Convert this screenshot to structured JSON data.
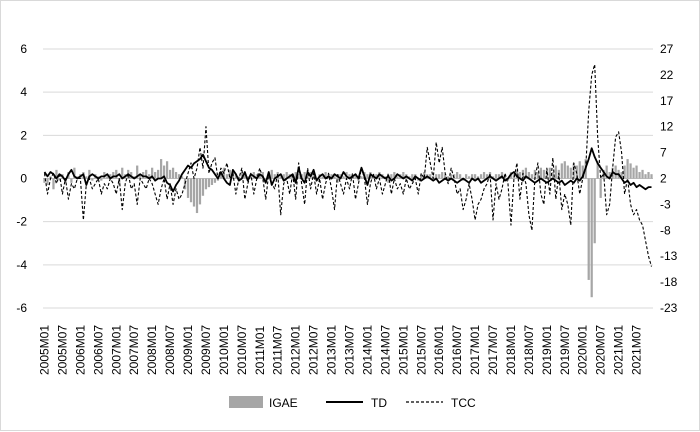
{
  "chart_data": {
    "type": "bar+line",
    "title": "",
    "xlabel": "",
    "ylabel_left": "",
    "ylabel_right": "",
    "left_axis": {
      "ylim": [
        -6,
        6
      ],
      "ticks": [
        "-6",
        "-4",
        "-2",
        "0",
        "2",
        "4",
        "6"
      ]
    },
    "right_axis": {
      "ylim": [
        -23,
        27
      ],
      "ticks": [
        "-23",
        "-18",
        "-13",
        "-8",
        "-3",
        "2",
        "7",
        "12",
        "17",
        "22",
        "27"
      ]
    },
    "x_tick_labels": [
      "2005M01",
      "2005M07",
      "2006M01",
      "2006M07",
      "2007M01",
      "2007M07",
      "2008M01",
      "2008M07",
      "2009M01",
      "2009M07",
      "2010M01",
      "2010M07",
      "2011M01",
      "2011M07",
      "2012M01",
      "2012M07",
      "2013M01",
      "2013M07",
      "2014M01",
      "2014M07",
      "2015M01",
      "2015M07",
      "2016M01",
      "2016M07",
      "2017M01",
      "2017M07",
      "2018M01",
      "2018M07",
      "2019M01",
      "2019M07",
      "2020M01",
      "2020M07",
      "2021M01",
      "2021M07"
    ],
    "grid": true,
    "legend_position": "bottom",
    "colors": {
      "IGAE": "#a6a6a6",
      "TD": "#000000",
      "TCC": "#000000",
      "grid": "#d9d9d9"
    },
    "series": [
      {
        "name": "IGAE",
        "type": "bar",
        "axis": "left",
        "x_start": "2005M01",
        "values": [
          -0.2,
          -0.3,
          0.1,
          -0.5,
          0.4,
          -0.1,
          0.2,
          -0.2,
          0.3,
          -0.2,
          0.5,
          0.1,
          0.2,
          0.3,
          0.1,
          0.4,
          -0.1,
          0.2,
          0.1,
          -0.1,
          0.3,
          0.1,
          0.2,
          0.3,
          0.4,
          -0.3,
          0.5,
          0.2,
          0.4,
          0.3,
          0.1,
          0.6,
          0.2,
          0.3,
          0.4,
          0.2,
          0.5,
          0.3,
          0.4,
          0.9,
          0.6,
          0.8,
          0.4,
          0.5,
          0.3,
          0.2,
          0.1,
          -0.5,
          -0.9,
          -1.1,
          -1.3,
          -1.6,
          -1.2,
          -0.8,
          -0.5,
          -0.4,
          -0.3,
          -0.2,
          -0.1,
          0.3,
          0.5,
          0.2,
          0.4,
          0.3,
          0.2,
          0.1,
          0.3,
          0.2,
          0.1,
          0.2,
          0.3,
          0.2,
          0.2,
          0.3,
          -0.1,
          0.2,
          0.4,
          0.2,
          0.3,
          0.1,
          0.2,
          0.3,
          0.2,
          0.2,
          0.3,
          0.2,
          0.2,
          0.3,
          0.1,
          0.3,
          0.2,
          -0.1,
          0.2,
          0.1,
          0.3,
          0.2,
          0.2,
          0.1,
          -0.2,
          0.2,
          0.1,
          0.3,
          0.2,
          0.1,
          0.2,
          -0.1,
          0.1,
          0.3,
          0.2,
          0.3,
          0.1,
          0.2,
          0.3,
          0.2,
          0.1,
          -0.2,
          0.2,
          0.3,
          0.1,
          0.2,
          0.3,
          0.2,
          0.1,
          0.2,
          0.2,
          -0.1,
          0.2,
          0.3,
          0.2,
          0.2,
          0.1,
          0.2,
          0.2,
          0.3,
          0.2,
          0.1,
          0.2,
          0.2,
          0.3,
          0.2,
          -0.1,
          0.2,
          0.1,
          0.2,
          0.2,
          0.1,
          0.2,
          0.3,
          0.2,
          0.3,
          0.1,
          0.2,
          0.2,
          0.3,
          0.2,
          -0.1,
          0.3,
          0.2,
          0.4,
          0.3,
          0.4,
          0.5,
          0.3,
          0.2,
          0.4,
          0.3,
          0.5,
          0.4,
          0.4,
          0.5,
          0.3,
          0.6,
          0.4,
          0.7,
          0.8,
          0.6,
          0.5,
          0.7,
          0.6,
          0.8,
          0.6,
          0.9,
          -4.7,
          -5.5,
          -3.0,
          0.8,
          -0.9,
          0.4,
          0.6,
          0.3,
          0.5,
          0.6,
          0.4,
          0.3,
          0.6,
          0.9,
          0.7,
          0.5,
          0.6,
          0.3,
          0.4,
          0.2,
          0.3,
          0.2
        ]
      },
      {
        "name": "TD",
        "type": "line",
        "axis": "left",
        "dash": "solid",
        "x_start": "2005M01",
        "values": [
          0.3,
          0.1,
          0.3,
          0.2,
          0.0,
          0.2,
          0.1,
          -0.1,
          0.2,
          0.4,
          0.1,
          0.0,
          0.1,
          0.2,
          -0.3,
          0.1,
          0.2,
          0.1,
          0.0,
          0.1,
          0.1,
          0.2,
          0.0,
          0.1,
          0.1,
          0.2,
          0.0,
          0.1,
          0.2,
          0.1,
          0.0,
          0.1,
          0.2,
          0.1,
          0.1,
          0.0,
          0.1,
          -0.1,
          0.0,
          0.0,
          0.1,
          -0.2,
          -0.3,
          -0.6,
          -0.3,
          -0.1,
          0.2,
          0.4,
          0.6,
          0.5,
          0.7,
          0.8,
          0.9,
          1.1,
          0.8,
          0.5,
          0.4,
          0.2,
          0.0,
          0.3,
          0.0,
          -0.2,
          -0.3,
          0.4,
          0.2,
          -0.1,
          0.0,
          0.3,
          -0.1,
          0.2,
          0.1,
          0.0,
          0.2,
          0.1,
          -0.2,
          0.3,
          -0.3,
          0.0,
          0.1,
          0.2,
          -0.1,
          0.0,
          0.1,
          0.2,
          -0.2,
          0.5,
          0.0,
          -0.2,
          0.3,
          0.1,
          0.4,
          -0.1,
          0.1,
          0.2,
          0.0,
          0.1,
          0.0,
          0.2,
          0.1,
          0.0,
          0.3,
          0.1,
          0.0,
          0.1,
          0.2,
          0.0,
          0.5,
          0.1,
          -0.3,
          0.2,
          0.1,
          0.0,
          0.2,
          0.1,
          0.0,
          0.1,
          -0.1,
          0.0,
          0.2,
          0.1,
          0.0,
          0.1,
          0.0,
          -0.1,
          0.1,
          0.0,
          -0.1,
          0.0,
          0.1,
          0.0,
          -0.1,
          0.0,
          -0.2,
          -0.1,
          0.0,
          -0.1,
          0.0,
          -0.1,
          -0.2,
          -0.1,
          0.0,
          -0.1,
          -0.2,
          0.0,
          -0.1,
          0.0,
          -0.2,
          -0.1,
          0.0,
          0.1,
          0.0,
          -0.1,
          0.0,
          0.1,
          -0.1,
          0.0,
          0.2,
          0.3,
          0.1,
          0.0,
          -0.1,
          0.1,
          0.0,
          -0.1,
          -0.2,
          -0.1,
          0.0,
          -0.1,
          -0.2,
          -0.1,
          0.0,
          -0.1,
          -0.2,
          -0.1,
          -0.3,
          -0.2,
          -0.1,
          -0.2,
          0.0,
          -0.1,
          0.1,
          0.5,
          0.9,
          1.4,
          1.0,
          0.7,
          0.5,
          0.3,
          0.1,
          0.0,
          0.3,
          0.2,
          0.2,
          0.0,
          -0.2,
          -0.1,
          -0.3,
          -0.2,
          -0.4,
          -0.3,
          -0.4,
          -0.5,
          -0.4,
          -0.4
        ]
      },
      {
        "name": "TCC",
        "type": "line",
        "axis": "right",
        "dash": "dashed",
        "x_start": "2005M01",
        "values": [
          3,
          -1,
          2,
          3,
          1,
          3,
          -1,
          2,
          -2,
          1,
          0,
          2,
          2,
          -6,
          1,
          2,
          0,
          1,
          2,
          -1,
          1,
          0,
          2,
          1,
          -1,
          2,
          -4,
          1,
          3,
          0,
          1,
          -3,
          2,
          1,
          0,
          2,
          1,
          -1,
          -3,
          0,
          2,
          -2,
          1,
          -3,
          0,
          -2,
          -1,
          1,
          3,
          5,
          2,
          4,
          8,
          4,
          12,
          3,
          5,
          6,
          2,
          4,
          3,
          5,
          2,
          3,
          -1,
          2,
          4,
          -2,
          1,
          3,
          -1,
          2,
          4,
          2,
          -2,
          3,
          1,
          0,
          3,
          -5,
          1,
          2,
          -1,
          3,
          -2,
          5,
          1,
          -3,
          4,
          0,
          3,
          -1,
          2,
          -2,
          1,
          3,
          0,
          -4,
          3,
          1,
          -1,
          2,
          0,
          3,
          -2,
          1,
          4,
          2,
          -3,
          1,
          3,
          0,
          2,
          -1,
          1,
          3,
          -1,
          2,
          0,
          1,
          -1,
          2,
          0,
          1,
          2,
          -1,
          3,
          2,
          8,
          5,
          2,
          9,
          5,
          8,
          3,
          1,
          4,
          2,
          -1,
          0,
          -4,
          -2,
          1,
          -2,
          -6,
          -3,
          -2,
          0,
          1,
          3,
          -6,
          1,
          -2,
          0,
          3,
          1,
          -7,
          2,
          5,
          -2,
          3,
          1,
          -5,
          -8,
          2,
          5,
          -1,
          -3,
          4,
          -1,
          6,
          -2,
          3,
          -4,
          -1,
          -3,
          -7,
          5,
          3,
          -1,
          2,
          4,
          15,
          22,
          24,
          10,
          2,
          3,
          -5,
          -3,
          4,
          10,
          11,
          7,
          -1,
          2,
          -3,
          -5,
          -4,
          -6,
          -7,
          -10,
          -13,
          -15
        ]
      }
    ]
  }
}
